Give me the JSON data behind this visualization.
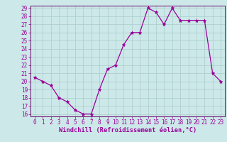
{
  "x": [
    0,
    1,
    2,
    3,
    4,
    5,
    6,
    7,
    8,
    9,
    10,
    11,
    12,
    13,
    14,
    15,
    16,
    17,
    18,
    19,
    20,
    21,
    22,
    23
  ],
  "y": [
    20.5,
    20.0,
    19.5,
    18.0,
    17.5,
    16.5,
    16.0,
    16.0,
    19.0,
    21.5,
    22.0,
    24.5,
    26.0,
    26.0,
    29.0,
    28.5,
    27.0,
    29.0,
    27.5,
    27.5,
    27.5,
    27.5,
    21.0,
    20.0
  ],
  "line_color": "#990099",
  "marker": "*",
  "marker_color": "#990099",
  "bg_color": "#cce8e8",
  "grid_color": "#aacccc",
  "xlabel": "Windchill (Refroidissement éolien,°C)",
  "xlabel_color": "#990099",
  "tick_color": "#990099",
  "spine_color": "#660066",
  "ylim": [
    15.7,
    29.3
  ],
  "xlim": [
    -0.5,
    23.5
  ],
  "yticks": [
    16,
    17,
    18,
    19,
    20,
    21,
    22,
    23,
    24,
    25,
    26,
    27,
    28,
    29
  ],
  "xticks": [
    0,
    1,
    2,
    3,
    4,
    5,
    6,
    7,
    8,
    9,
    10,
    11,
    12,
    13,
    14,
    15,
    16,
    17,
    18,
    19,
    20,
    21,
    22,
    23
  ],
  "tick_fontsize": 5.5,
  "xlabel_fontsize": 6.2,
  "linewidth": 0.9,
  "markersize": 3.5
}
